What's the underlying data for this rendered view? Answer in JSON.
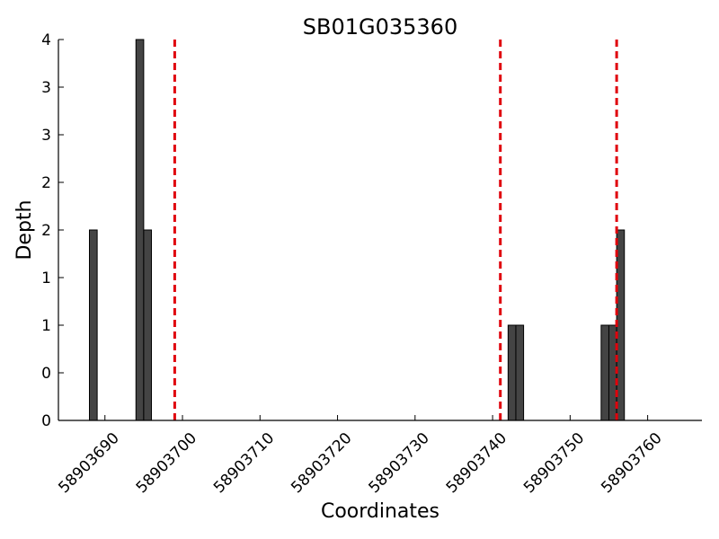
{
  "chart_data": {
    "type": "bar",
    "title": "SB01G035360",
    "xlabel": "Coordinates",
    "ylabel": "Depth",
    "xlim": [
      58903684,
      58903767
    ],
    "ylim": [
      0,
      4
    ],
    "x_ticks": [
      {
        "value": 58903690,
        "label": "58903690"
      },
      {
        "value": 58903700,
        "label": "58903700"
      },
      {
        "value": 58903710,
        "label": "58903710"
      },
      {
        "value": 58903720,
        "label": "58903720"
      },
      {
        "value": 58903730,
        "label": "58903730"
      },
      {
        "value": 58903740,
        "label": "58903740"
      },
      {
        "value": 58903750,
        "label": "58903750"
      },
      {
        "value": 58903760,
        "label": "58903760"
      }
    ],
    "y_ticks": [
      {
        "value": 0,
        "label": "0"
      },
      {
        "value": 0.5,
        "label": "0"
      },
      {
        "value": 1,
        "label": "1"
      },
      {
        "value": 1.5,
        "label": "1"
      },
      {
        "value": 2,
        "label": "2"
      },
      {
        "value": 2.5,
        "label": "2"
      },
      {
        "value": 3,
        "label": "3"
      },
      {
        "value": 3.5,
        "label": "3"
      },
      {
        "value": 4,
        "label": "4"
      }
    ],
    "bins": [
      {
        "start": 58903688,
        "end": 58903689,
        "value": 2
      },
      {
        "start": 58903694,
        "end": 58903695,
        "value": 4
      },
      {
        "start": 58903695,
        "end": 58903696,
        "value": 2
      },
      {
        "start": 58903742,
        "end": 58903743,
        "value": 1
      },
      {
        "start": 58903743,
        "end": 58903744,
        "value": 1
      },
      {
        "start": 58903754,
        "end": 58903755,
        "value": 1
      },
      {
        "start": 58903755,
        "end": 58903756,
        "value": 1
      },
      {
        "start": 58903756,
        "end": 58903757,
        "value": 2
      }
    ],
    "vlines": [
      58903699,
      58903741,
      58903756
    ],
    "colors": {
      "bar_fill": "#444444",
      "bar_stroke": "#000000",
      "vline": "#e0000b",
      "axis": "#000000"
    },
    "grid": false,
    "legend": "none"
  }
}
